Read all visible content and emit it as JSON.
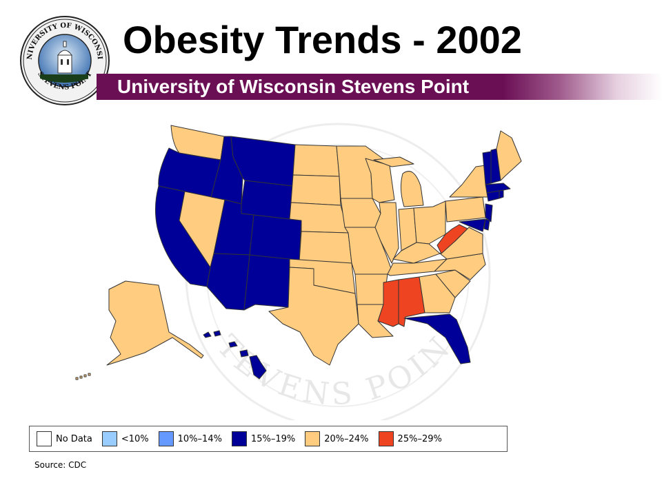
{
  "title": "Obesity Trends - 2002",
  "subtitle": "University of Wisconsin Stevens Point",
  "logo": {
    "text_top": "UNIVERSITY OF WISCONSIN",
    "text_bottom": "STEVENS POINT"
  },
  "watermark": {
    "text": "STEVENS POINT"
  },
  "colors": {
    "no_data": "#ffffff",
    "lt10": "#99ccff",
    "p10_14": "#6699ff",
    "p15_19": "#000099",
    "p20_24": "#ffcc80",
    "p25_29": "#ee4422",
    "banner": "#6b0f55"
  },
  "map": {
    "states": {
      "WA": "20-24",
      "OR": "15-19",
      "CA": "15-19",
      "NV": "20-24",
      "ID": "15-19",
      "MT": "15-19",
      "WY": "15-19",
      "UT": "15-19",
      "AZ": "15-19",
      "CO": "15-19",
      "NM": "15-19",
      "ND": "20-24",
      "SD": "20-24",
      "NE": "20-24",
      "KS": "20-24",
      "OK": "20-24",
      "TX": "20-24",
      "MN": "20-24",
      "IA": "20-24",
      "MO": "20-24",
      "AR": "20-24",
      "LA": "20-24",
      "WI": "20-24",
      "IL": "20-24",
      "MI": "20-24",
      "IN": "20-24",
      "OH": "20-24",
      "KY": "20-24",
      "TN": "20-24",
      "MS": "25-29",
      "AL": "25-29",
      "GA": "20-24",
      "FL": "15-19",
      "SC": "20-24",
      "NC": "20-24",
      "VA": "20-24",
      "WV": "25-29",
      "PA": "20-24",
      "NY": "20-24",
      "ME": "20-24",
      "VT": "15-19",
      "NH": "15-19",
      "MA": "15-19",
      "CT": "15-19",
      "RI": "15-19",
      "NJ": "15-19",
      "DE": "15-19",
      "MD": "15-19",
      "AK": "20-24",
      "HI": "15-19"
    }
  },
  "legend": {
    "items": [
      {
        "label": "No Data",
        "color": "#ffffff"
      },
      {
        "label": "<10%",
        "color": "#99ccff"
      },
      {
        "label": "10%–14%",
        "color": "#6699ff"
      },
      {
        "label": "15%–19%",
        "color": "#000099"
      },
      {
        "label": "20%–24%",
        "color": "#ffcc80"
      },
      {
        "label": "25%–29%",
        "color": "#ee4422"
      }
    ]
  },
  "source": "Source: CDC"
}
